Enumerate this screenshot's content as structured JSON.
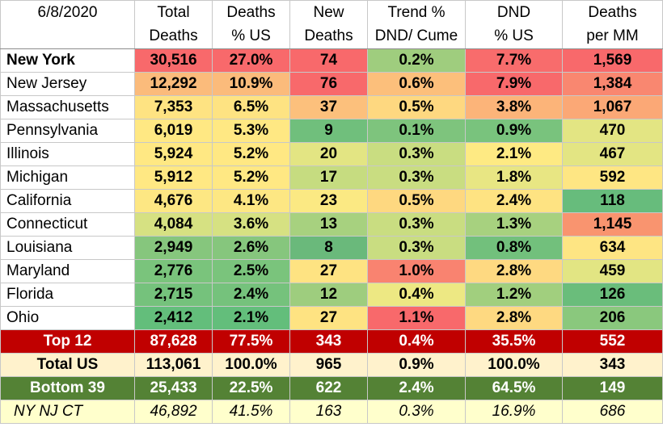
{
  "header": {
    "date": "6/8/2020",
    "columns": [
      {
        "line1": "Total",
        "line2": "Deaths"
      },
      {
        "line1": "Deaths",
        "line2": "% US"
      },
      {
        "line1": "New",
        "line2": "Deaths"
      },
      {
        "line1": "Trend %",
        "line2": "DND/ Cume"
      },
      {
        "line1": "DND",
        "line2": "% US"
      },
      {
        "line1": "Deaths",
        "line2": "per MM"
      }
    ]
  },
  "rows": [
    {
      "state": "New York",
      "bold": true,
      "cells": [
        {
          "v": "30,516",
          "c": "#f8696b"
        },
        {
          "v": "27.0%",
          "c": "#f8696b"
        },
        {
          "v": "74",
          "c": "#f8696b"
        },
        {
          "v": "0.2%",
          "c": "#9fcd7e"
        },
        {
          "v": "7.7%",
          "c": "#f86c6c"
        },
        {
          "v": "1,569",
          "c": "#f8696b"
        }
      ]
    },
    {
      "state": "New Jersey",
      "cells": [
        {
          "v": "12,292",
          "c": "#fbbb7b"
        },
        {
          "v": "10.9%",
          "c": "#fbbb7b"
        },
        {
          "v": "76",
          "c": "#f8696b"
        },
        {
          "v": "0.6%",
          "c": "#fcbf7b"
        },
        {
          "v": "7.9%",
          "c": "#f8696b"
        },
        {
          "v": "1,384",
          "c": "#f98770"
        }
      ]
    },
    {
      "state": "Massachusetts",
      "cells": [
        {
          "v": "7,353",
          "c": "#fee382"
        },
        {
          "v": "6.5%",
          "c": "#fee382"
        },
        {
          "v": "37",
          "c": "#fcc07c"
        },
        {
          "v": "0.5%",
          "c": "#fed880"
        },
        {
          "v": "3.8%",
          "c": "#fcb479"
        },
        {
          "v": "1,067",
          "c": "#fba876"
        }
      ]
    },
    {
      "state": "Pennsylvania",
      "cells": [
        {
          "v": "6,019",
          "c": "#ffe883"
        },
        {
          "v": "5.3%",
          "c": "#ffe883"
        },
        {
          "v": "9",
          "c": "#70bf7c"
        },
        {
          "v": "0.1%",
          "c": "#7ec47d"
        },
        {
          "v": "0.9%",
          "c": "#79c37d"
        },
        {
          "v": "470",
          "c": "#e3e583"
        }
      ]
    },
    {
      "state": "Illinois",
      "cells": [
        {
          "v": "5,924",
          "c": "#ffe883"
        },
        {
          "v": "5.2%",
          "c": "#ffe883"
        },
        {
          "v": "20",
          "c": "#e3e583"
        },
        {
          "v": "0.3%",
          "c": "#c9dd81"
        },
        {
          "v": "2.1%",
          "c": "#feea83"
        },
        {
          "v": "467",
          "c": "#e3e583"
        }
      ]
    },
    {
      "state": "Michigan",
      "cells": [
        {
          "v": "5,912",
          "c": "#ffe883"
        },
        {
          "v": "5.2%",
          "c": "#ffe883"
        },
        {
          "v": "17",
          "c": "#c6dc80"
        },
        {
          "v": "0.3%",
          "c": "#c9dd81"
        },
        {
          "v": "1.8%",
          "c": "#e8e683"
        },
        {
          "v": "592",
          "c": "#fee683"
        }
      ]
    },
    {
      "state": "California",
      "cells": [
        {
          "v": "4,676",
          "c": "#fde783"
        },
        {
          "v": "4.1%",
          "c": "#fde783"
        },
        {
          "v": "23",
          "c": "#fbe983"
        },
        {
          "v": "0.5%",
          "c": "#fed880"
        },
        {
          "v": "2.4%",
          "c": "#fee382"
        },
        {
          "v": "118",
          "c": "#67bc7c"
        }
      ]
    },
    {
      "state": "Connecticut",
      "cells": [
        {
          "v": "4,084",
          "c": "#d6e182"
        },
        {
          "v": "3.6%",
          "c": "#d6e182"
        },
        {
          "v": "13",
          "c": "#a7d17f"
        },
        {
          "v": "0.3%",
          "c": "#c9dd81"
        },
        {
          "v": "1.3%",
          "c": "#a7d17f"
        },
        {
          "v": "1,145",
          "c": "#f9946f"
        }
      ]
    },
    {
      "state": "Louisiana",
      "cells": [
        {
          "v": "2,949",
          "c": "#86c67d"
        },
        {
          "v": "2.6%",
          "c": "#86c67d"
        },
        {
          "v": "8",
          "c": "#6ab97b"
        },
        {
          "v": "0.3%",
          "c": "#c9dd81"
        },
        {
          "v": "0.8%",
          "c": "#72c07c"
        },
        {
          "v": "634",
          "c": "#fee583"
        }
      ]
    },
    {
      "state": "Maryland",
      "cells": [
        {
          "v": "2,776",
          "c": "#7ac47c"
        },
        {
          "v": "2.5%",
          "c": "#7ac47c"
        },
        {
          "v": "27",
          "c": "#fee382"
        },
        {
          "v": "1.0%",
          "c": "#f98370"
        },
        {
          "v": "2.8%",
          "c": "#fed981"
        },
        {
          "v": "459",
          "c": "#e2e583"
        }
      ]
    },
    {
      "state": "Florida",
      "cells": [
        {
          "v": "2,715",
          "c": "#75c27c"
        },
        {
          "v": "2.4%",
          "c": "#75c27c"
        },
        {
          "v": "12",
          "c": "#9ecd7e"
        },
        {
          "v": "0.4%",
          "c": "#ede883"
        },
        {
          "v": "1.2%",
          "c": "#a1cf7e"
        },
        {
          "v": "126",
          "c": "#6abd7b"
        }
      ]
    },
    {
      "state": "Ohio",
      "cells": [
        {
          "v": "2,412",
          "c": "#63be7b"
        },
        {
          "v": "2.1%",
          "c": "#63be7b"
        },
        {
          "v": "27",
          "c": "#fee382"
        },
        {
          "v": "1.1%",
          "c": "#f8696b"
        },
        {
          "v": "2.8%",
          "c": "#fed981"
        },
        {
          "v": "206",
          "c": "#8ac87d"
        }
      ]
    }
  ],
  "summary": [
    {
      "kind": "top12",
      "label": "Top 12",
      "values": [
        "87,628",
        "77.5%",
        "343",
        "0.4%",
        "35.5%",
        "552"
      ]
    },
    {
      "kind": "totalus",
      "label": "Total US",
      "values": [
        "113,061",
        "100.0%",
        "965",
        "0.9%",
        "100.0%",
        "343"
      ]
    },
    {
      "kind": "bottom",
      "label": "Bottom 39",
      "values": [
        "25,433",
        "22.5%",
        "622",
        "2.4%",
        "64.5%",
        "149"
      ]
    },
    {
      "kind": "nynjct",
      "label": "NY NJ CT",
      "values": [
        "46,892",
        "41.5%",
        "163",
        "0.3%",
        "16.9%",
        "686"
      ]
    }
  ]
}
